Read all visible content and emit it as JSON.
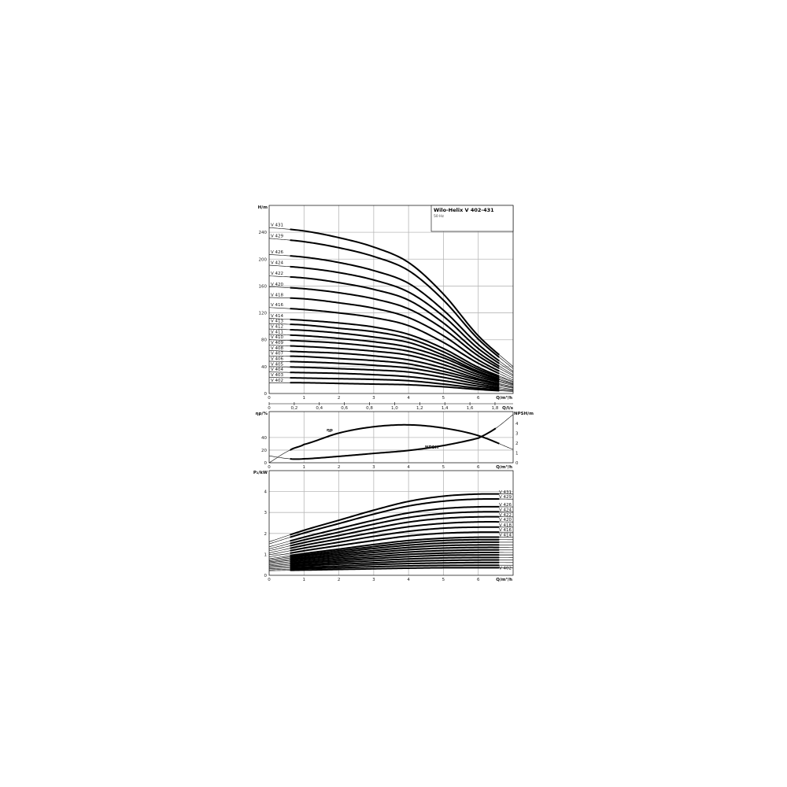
{
  "title": "Wilo-Helix V 402-431",
  "subtitle": "50 Hz",
  "colors": {
    "curve": "#000000",
    "grid": "#b8b8b8",
    "frame": "#000000"
  },
  "chart_data": [
    {
      "type": "line",
      "name": "head",
      "ylabel": "H/m",
      "xlabel": "Q/m³/h",
      "xlabel2": "Q/l/s",
      "xlim": [
        0,
        7
      ],
      "ylim": [
        0,
        280
      ],
      "xticks": [
        "0",
        "1",
        "2",
        "3",
        "4",
        "5",
        "6"
      ],
      "xticks2": [
        "0",
        "0,2",
        "0,4",
        "0,6",
        "0,8",
        "1,0",
        "1,2",
        "1,4",
        "1,6",
        "1,8"
      ],
      "yticks": [
        "0",
        "40",
        "80",
        "120",
        "160",
        "200",
        "240"
      ],
      "grid": true,
      "x": [
        0,
        1,
        2,
        3,
        4,
        5,
        6,
        7
      ],
      "series": [
        {
          "name": "V 402",
          "values": [
            16,
            16,
            15,
            14,
            13,
            10,
            6,
            3
          ]
        },
        {
          "name": "V 403",
          "values": [
            24,
            23,
            22,
            21,
            19,
            14,
            8,
            4
          ]
        },
        {
          "name": "V 404",
          "values": [
            32,
            31,
            30,
            28,
            25,
            19,
            11,
            5
          ]
        },
        {
          "name": "V 405",
          "values": [
            40,
            39,
            37,
            35,
            32,
            24,
            14,
            6
          ]
        },
        {
          "name": "V 406",
          "values": [
            48,
            47,
            45,
            42,
            38,
            29,
            17,
            8
          ]
        },
        {
          "name": "V 407",
          "values": [
            56,
            55,
            52,
            49,
            44,
            33,
            20,
            9
          ]
        },
        {
          "name": "V 408",
          "values": [
            64,
            62,
            60,
            56,
            50,
            38,
            22,
            10
          ]
        },
        {
          "name": "V 409",
          "values": [
            72,
            70,
            67,
            63,
            57,
            43,
            25,
            12
          ]
        },
        {
          "name": "V 410",
          "values": [
            80,
            78,
            75,
            70,
            63,
            48,
            28,
            13
          ]
        },
        {
          "name": "V 411",
          "values": [
            88,
            86,
            82,
            77,
            69,
            53,
            31,
            14
          ]
        },
        {
          "name": "V 412",
          "values": [
            96,
            94,
            90,
            84,
            76,
            57,
            33,
            15
          ]
        },
        {
          "name": "V 413",
          "values": [
            104,
            102,
            97,
            92,
            82,
            62,
            36,
            17
          ]
        },
        {
          "name": "V 414",
          "values": [
            112,
            109,
            105,
            99,
            88,
            67,
            39,
            18
          ]
        },
        {
          "name": "V 416",
          "values": [
            128,
            125,
            120,
            113,
            101,
            76,
            45,
            20
          ]
        },
        {
          "name": "V 418",
          "values": [
            143,
            141,
            135,
            127,
            113,
            86,
            50,
            23
          ]
        },
        {
          "name": "V 420",
          "values": [
            159,
            156,
            150,
            141,
            126,
            96,
            56,
            26
          ]
        },
        {
          "name": "V 422",
          "values": [
            175,
            172,
            165,
            155,
            139,
            105,
            61,
            28
          ]
        },
        {
          "name": "V 424",
          "values": [
            191,
            187,
            180,
            169,
            151,
            115,
            67,
            31
          ]
        },
        {
          "name": "V 426",
          "values": [
            207,
            203,
            195,
            183,
            164,
            124,
            73,
            33
          ]
        },
        {
          "name": "V 429",
          "values": [
            231,
            226,
            217,
            204,
            183,
            139,
            81,
            37
          ]
        },
        {
          "name": "V 431",
          "values": [
            247,
            242,
            232,
            218,
            195,
            148,
            86,
            40
          ]
        }
      ]
    },
    {
      "type": "line",
      "name": "efficiency-npsh",
      "ylabel": "ηp/%",
      "ylabel_right": "NPSH/m",
      "xlabel": "Q/m³/h",
      "xlim": [
        0,
        7
      ],
      "ylim": [
        0,
        81
      ],
      "ylim_right": [
        0,
        5.2
      ],
      "xticks": [
        "0",
        "1",
        "2",
        "3",
        "4",
        "5",
        "6"
      ],
      "yticks": [
        "0",
        "20",
        "40"
      ],
      "yticks_right": [
        "0",
        "1",
        "2",
        "3",
        "4"
      ],
      "grid": true,
      "series": [
        {
          "name": "ηp",
          "x": [
            0,
            0.6,
            1,
            2,
            3,
            4,
            5,
            6,
            7
          ],
          "values": [
            0,
            20,
            29,
            47,
            57,
            60,
            55,
            43,
            21
          ]
        },
        {
          "name": "NPSH",
          "axis": "right",
          "x": [
            0,
            0.6,
            1,
            2,
            3,
            4,
            5,
            6,
            6.5,
            7
          ],
          "values": [
            0.7,
            0.4,
            0.4,
            0.65,
            0.95,
            1.25,
            1.75,
            2.5,
            3.5,
            4.9
          ]
        }
      ]
    },
    {
      "type": "line",
      "name": "power",
      "ylabel": "P₂/kW",
      "xlabel": "Q/m³/h",
      "xlim": [
        0,
        7
      ],
      "ylim": [
        0,
        5
      ],
      "xticks": [
        "0",
        "1",
        "2",
        "3",
        "4",
        "5",
        "6"
      ],
      "yticks": [
        "0",
        "1",
        "2",
        "3",
        "4"
      ],
      "grid": true,
      "x": [
        0,
        1,
        2,
        3,
        4,
        5,
        6,
        7
      ],
      "labeled": [
        "V 431",
        "V 429",
        "V 426",
        "V 424",
        "V 422",
        "V 420",
        "V 418",
        "V 416",
        "V 414",
        "V 402"
      ],
      "series": [
        {
          "name": "V 402",
          "values": [
            0.22,
            0.25,
            0.28,
            0.31,
            0.34,
            0.36,
            0.36,
            0.36
          ]
        },
        {
          "name": "V 403",
          "values": [
            0.26,
            0.32,
            0.36,
            0.41,
            0.45,
            0.47,
            0.48,
            0.48
          ]
        },
        {
          "name": "V 404",
          "values": [
            0.31,
            0.38,
            0.44,
            0.51,
            0.56,
            0.59,
            0.61,
            0.61
          ]
        },
        {
          "name": "V 405",
          "values": [
            0.36,
            0.45,
            0.53,
            0.6,
            0.67,
            0.71,
            0.73,
            0.73
          ]
        },
        {
          "name": "V 406",
          "values": [
            0.41,
            0.51,
            0.61,
            0.7,
            0.78,
            0.83,
            0.85,
            0.85
          ]
        },
        {
          "name": "V 407",
          "values": [
            0.45,
            0.58,
            0.69,
            0.8,
            0.89,
            0.95,
            0.97,
            0.97
          ]
        },
        {
          "name": "V 408",
          "values": [
            0.5,
            0.64,
            0.77,
            0.89,
            1.0,
            1.06,
            1.09,
            1.09
          ]
        },
        {
          "name": "V 409",
          "values": [
            0.55,
            0.71,
            0.85,
            0.99,
            1.11,
            1.18,
            1.21,
            1.21
          ]
        },
        {
          "name": "V 410",
          "values": [
            0.6,
            0.78,
            0.93,
            1.09,
            1.22,
            1.3,
            1.33,
            1.33
          ]
        },
        {
          "name": "V 411",
          "values": [
            0.64,
            0.84,
            1.01,
            1.18,
            1.33,
            1.42,
            1.45,
            1.45
          ]
        },
        {
          "name": "V 412",
          "values": [
            0.69,
            0.91,
            1.09,
            1.28,
            1.44,
            1.54,
            1.58,
            1.58
          ]
        },
        {
          "name": "V 413",
          "values": [
            0.74,
            0.97,
            1.17,
            1.37,
            1.55,
            1.66,
            1.7,
            1.7
          ]
        },
        {
          "name": "V 414",
          "values": [
            0.79,
            1.04,
            1.25,
            1.47,
            1.66,
            1.77,
            1.82,
            1.82
          ]
        },
        {
          "name": "V 416",
          "values": [
            0.88,
            1.17,
            1.42,
            1.66,
            1.88,
            2.01,
            2.06,
            2.06
          ]
        },
        {
          "name": "V 418",
          "values": [
            0.98,
            1.3,
            1.58,
            1.86,
            2.1,
            2.25,
            2.3,
            2.3
          ]
        },
        {
          "name": "V 420",
          "values": [
            1.07,
            1.43,
            1.74,
            2.05,
            2.32,
            2.48,
            2.55,
            2.55
          ]
        },
        {
          "name": "V 422",
          "values": [
            1.17,
            1.56,
            1.9,
            2.24,
            2.54,
            2.72,
            2.79,
            2.79
          ]
        },
        {
          "name": "V 424",
          "values": [
            1.26,
            1.69,
            2.06,
            2.44,
            2.76,
            2.95,
            3.03,
            3.03
          ]
        },
        {
          "name": "V 426",
          "values": [
            1.36,
            1.82,
            2.23,
            2.63,
            2.98,
            3.19,
            3.27,
            3.27
          ]
        },
        {
          "name": "V 429",
          "values": [
            1.5,
            2.02,
            2.47,
            2.92,
            3.31,
            3.54,
            3.64,
            3.64
          ]
        },
        {
          "name": "V 431",
          "values": [
            1.6,
            2.15,
            2.63,
            3.11,
            3.53,
            3.78,
            3.88,
            3.88
          ]
        }
      ]
    }
  ]
}
